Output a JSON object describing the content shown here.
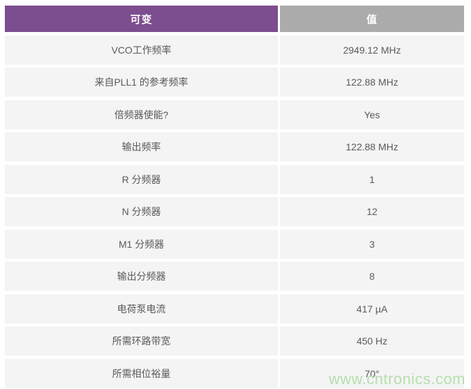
{
  "chart_data": {
    "type": "table",
    "title": "",
    "columns": [
      "可变",
      "值"
    ],
    "rows": [
      {
        "label": "VCO工作频率",
        "value": "2949.12 MHz"
      },
      {
        "label": "来自PLL1 的参考频率",
        "value": "122.88 MHz"
      },
      {
        "label": "倍频器使能?",
        "value": "Yes"
      },
      {
        "label": "输出频率",
        "value": "122.88 MHz"
      },
      {
        "label": "R 分频器",
        "value": "1"
      },
      {
        "label": "N 分频器",
        "value": "12"
      },
      {
        "label": "M1 分频器",
        "value": "3"
      },
      {
        "label": "输出分频器",
        "value": "8"
      },
      {
        "label": "电荷泵电流",
        "value": "417 µA"
      },
      {
        "label": "所需环路带宽",
        "value": "450 Hz"
      },
      {
        "label": "所需相位裕量",
        "value": "70°"
      }
    ]
  },
  "watermark": "www.cntronics.com",
  "colors": {
    "header_variable_bg": "#7C4D8F",
    "header_value_bg": "#ABABAB",
    "row_bg": "#F4F4F4",
    "row_text": "#595959",
    "header_text": "#FFFFFF",
    "watermark_text": "#B6DFAE"
  }
}
